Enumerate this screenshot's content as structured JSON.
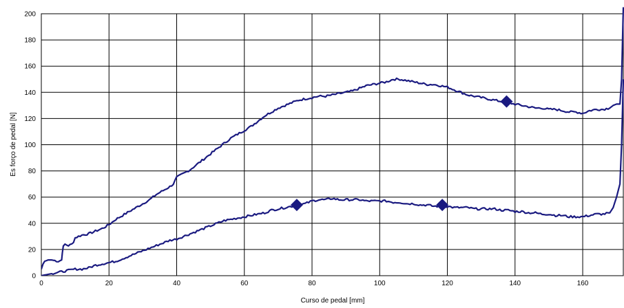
{
  "chart_data": {
    "type": "line",
    "title": "",
    "xlabel": "Curso de pedal [mm]",
    "ylabel": "Es forço de pedal [N]",
    "xlim": [
      0,
      172
    ],
    "ylim": [
      0,
      200
    ],
    "xticks": [
      0,
      20,
      40,
      60,
      80,
      100,
      120,
      140,
      160
    ],
    "yticks": [
      0,
      20,
      40,
      60,
      80,
      100,
      120,
      140,
      160,
      180,
      200
    ],
    "grid": true,
    "line_color": "#1a1a80",
    "series": [
      {
        "x": [
          0,
          0.5,
          1,
          2,
          3,
          4,
          5,
          6,
          6.2,
          6.5,
          7,
          8,
          9,
          9.5,
          10,
          12,
          14,
          16,
          18,
          20,
          22,
          24,
          26,
          28,
          30,
          32,
          34,
          36,
          38,
          39,
          40,
          42,
          44,
          46,
          48,
          50,
          52,
          54,
          56,
          58,
          60,
          62,
          64,
          66,
          68,
          70,
          72,
          74,
          76,
          78,
          80,
          82,
          84,
          86,
          88,
          90,
          92,
          94,
          96,
          98,
          100,
          102,
          104,
          106,
          108,
          110,
          112,
          114,
          116,
          118,
          120,
          122,
          124,
          126,
          128,
          130,
          132,
          134,
          136,
          138,
          140,
          142,
          144,
          146,
          148,
          150,
          152,
          154,
          156,
          158,
          160,
          162,
          164,
          166,
          168,
          169,
          170,
          171,
          171.5,
          172
        ],
        "y": [
          5,
          9,
          11,
          12,
          12,
          11.5,
          11,
          12,
          18,
          22,
          24,
          23,
          24,
          26,
          29,
          31,
          32,
          34,
          36,
          39,
          43,
          46,
          49,
          52,
          55,
          58,
          62,
          65,
          68,
          70,
          75,
          78,
          81,
          85,
          89,
          93,
          97,
          101,
          105,
          108,
          111,
          114,
          118,
          122,
          125,
          128,
          130,
          132,
          134,
          135,
          136,
          137,
          137,
          138,
          139,
          140,
          141,
          143,
          145,
          146,
          147,
          148,
          150,
          150,
          149,
          148,
          147,
          146,
          146,
          145,
          144,
          142,
          140,
          138,
          137,
          136,
          135,
          134,
          133,
          132,
          131,
          130,
          129,
          128,
          128,
          127,
          127,
          126,
          125,
          125,
          124,
          126,
          127,
          127,
          128,
          130,
          131,
          131,
          150,
          205
        ]
      },
      {
        "x": [
          0,
          2,
          4,
          6,
          8,
          10,
          12,
          14,
          16,
          18,
          20,
          22,
          24,
          26,
          28,
          30,
          32,
          34,
          36,
          38,
          40,
          42,
          44,
          46,
          48,
          50,
          52,
          54,
          56,
          58,
          60,
          62,
          64,
          66,
          68,
          70,
          72,
          74,
          76,
          78,
          80,
          82,
          84,
          86,
          88,
          90,
          92,
          94,
          96,
          98,
          100,
          102,
          104,
          106,
          108,
          110,
          112,
          114,
          116,
          118,
          120,
          122,
          124,
          126,
          128,
          130,
          132,
          134,
          136,
          138,
          140,
          142,
          144,
          146,
          148,
          150,
          152,
          154,
          156,
          158,
          160,
          162,
          164,
          166,
          168,
          169,
          170,
          171,
          171.5,
          172
        ],
        "y": [
          0,
          1,
          2,
          3,
          4,
          5,
          5,
          6,
          8,
          9,
          10,
          11,
          13,
          15,
          17,
          19,
          21,
          23,
          25,
          27,
          28,
          30,
          32,
          34,
          36,
          38,
          40,
          42,
          43,
          44,
          45,
          46,
          47,
          48,
          50,
          51,
          52,
          53,
          54,
          55,
          57,
          58,
          58,
          59,
          58,
          58,
          58,
          58,
          57,
          57,
          57,
          57,
          56,
          56,
          55,
          55,
          54,
          54,
          53,
          53,
          53,
          52,
          52,
          52,
          51,
          51,
          51,
          51,
          50,
          50,
          49,
          49,
          48,
          48,
          47,
          47,
          46,
          46,
          45,
          45,
          45,
          46,
          47,
          47,
          48,
          52,
          60,
          70,
          100,
          150
        ]
      }
    ],
    "markers": [
      {
        "x": 137.5,
        "y": 133
      },
      {
        "x": 75.5,
        "y": 54
      },
      {
        "x": 118.5,
        "y": 54
      }
    ]
  }
}
